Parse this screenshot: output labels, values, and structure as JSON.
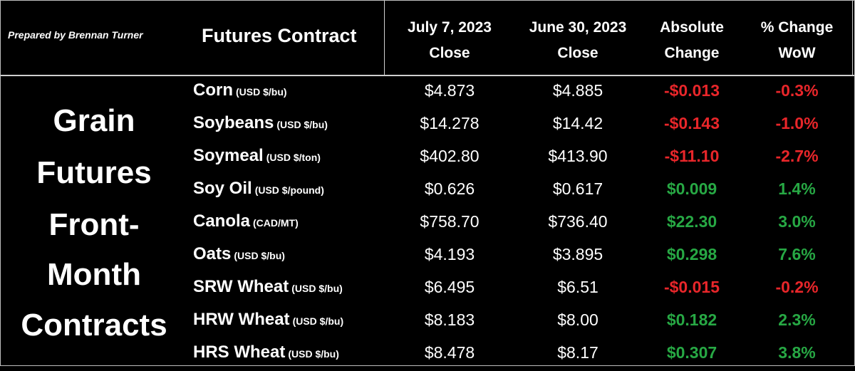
{
  "header": {
    "prepared_by": "Prepared by Brennan Turner",
    "contract_col": "Futures Contract",
    "col1": [
      "July 7, 2023",
      "Close"
    ],
    "col2": [
      "June 30, 2023",
      "Close"
    ],
    "col3": [
      "Absolute",
      "Change"
    ],
    "col4": [
      "% Change",
      "WoW"
    ]
  },
  "side_title": [
    "Grain",
    "Futures",
    "Front-",
    "Month",
    "Contracts"
  ],
  "colors": {
    "negative": "#e8262a",
    "positive": "#27a844",
    "background": "#000000",
    "text": "#ffffff"
  },
  "rows": [
    {
      "name": "Corn",
      "unit": "(USD $/bu)",
      "jul7": "$4.873",
      "jun30": "$4.885",
      "abs": "-$0.013",
      "pct": "-0.3%",
      "direction": "down"
    },
    {
      "name": "Soybeans",
      "unit": "(USD $/bu)",
      "jul7": "$14.278",
      "jun30": "$14.42",
      "abs": "-$0.143",
      "pct": "-1.0%",
      "direction": "down"
    },
    {
      "name": "Soymeal",
      "unit": "(USD $/ton)",
      "jul7": "$402.80",
      "jun30": "$413.90",
      "abs": "-$11.10",
      "pct": "-2.7%",
      "direction": "down"
    },
    {
      "name": "Soy Oil",
      "unit": "(USD $/pound)",
      "jul7": "$0.626",
      "jun30": "$0.617",
      "abs": "$0.009",
      "pct": "1.4%",
      "direction": "up"
    },
    {
      "name": "Canola",
      "unit": "(CAD/MT)",
      "jul7": "$758.70",
      "jun30": "$736.40",
      "abs": "$22.30",
      "pct": "3.0%",
      "direction": "up"
    },
    {
      "name": "Oats",
      "unit": "(USD $/bu)",
      "jul7": "$4.193",
      "jun30": "$3.895",
      "abs": "$0.298",
      "pct": "7.6%",
      "direction": "up"
    },
    {
      "name": "SRW Wheat",
      "unit": "(USD $/bu)",
      "jul7": "$6.495",
      "jun30": "$6.51",
      "abs": "-$0.015",
      "pct": "-0.2%",
      "direction": "down"
    },
    {
      "name": "HRW Wheat",
      "unit": "(USD $/bu)",
      "jul7": "$8.183",
      "jun30": "$8.00",
      "abs": "$0.182",
      "pct": "2.3%",
      "direction": "up"
    },
    {
      "name": "HRS Wheat",
      "unit": "(USD $/bu)",
      "jul7": "$8.478",
      "jun30": "$8.17",
      "abs": "$0.307",
      "pct": "3.8%",
      "direction": "up"
    }
  ]
}
